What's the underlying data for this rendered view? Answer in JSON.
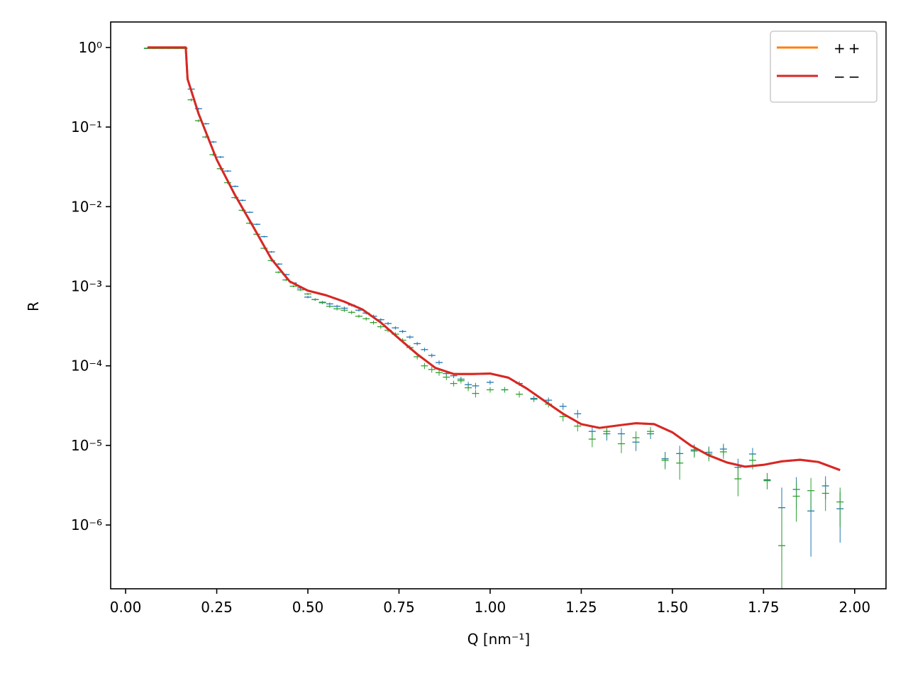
{
  "chart_data": {
    "type": "line",
    "xlabel": "Q [nm⁻¹]",
    "ylabel": "R",
    "xlim": [
      -0.041,
      2.086
    ],
    "ylim": [
      1.58e-07,
      2.09
    ],
    "log_y": true,
    "grid": false,
    "legend": "upper right",
    "xticks": [
      {
        "value": 0,
        "label": "0.00"
      },
      {
        "value": 0.25,
        "label": "0.25"
      },
      {
        "value": 0.5,
        "label": "0.50"
      },
      {
        "value": 0.75,
        "label": "0.75"
      },
      {
        "value": 1,
        "label": "1.00"
      },
      {
        "value": 1.25,
        "label": "1.25"
      },
      {
        "value": 1.5,
        "label": "1.50"
      },
      {
        "value": 1.75,
        "label": "1.75"
      },
      {
        "value": 2,
        "label": "2.00"
      }
    ],
    "yticks": [
      {
        "value": 1,
        "label": "10⁰"
      },
      {
        "value": 0.1,
        "label": "10⁻¹"
      },
      {
        "value": 0.01,
        "label": "10⁻²"
      },
      {
        "value": 0.001,
        "label": "10⁻³"
      },
      {
        "value": 0.0001,
        "label": "10⁻⁴"
      },
      {
        "value": 1e-05,
        "label": "10⁻⁵"
      },
      {
        "value": 1e-06,
        "label": "10⁻⁶"
      }
    ],
    "series": [
      {
        "type": "errorbar",
        "color": "#1f77b4",
        "x": [
          0.06,
          0.08,
          0.1,
          0.12,
          0.14,
          0.16,
          0.18,
          0.2,
          0.22,
          0.24,
          0.26,
          0.28,
          0.3,
          0.32,
          0.34,
          0.36,
          0.38,
          0.4,
          0.42,
          0.44,
          0.46,
          0.48,
          0.5,
          0.52,
          0.54,
          0.56,
          0.58,
          0.6,
          0.62,
          0.64,
          0.66,
          0.68,
          0.7,
          0.72,
          0.74,
          0.76,
          0.78,
          0.8,
          0.82,
          0.84,
          0.86,
          0.88,
          0.9,
          0.92,
          0.94,
          0.96,
          1.0,
          1.04,
          1.08,
          1.12,
          1.16,
          1.2,
          1.24,
          1.28,
          1.32,
          1.36,
          1.4,
          1.44,
          1.48,
          1.52,
          1.56,
          1.6,
          1.64,
          1.68,
          1.72,
          1.76,
          1.8,
          1.84,
          1.88,
          1.92,
          1.96
        ],
        "values": [
          0.98,
          0.98,
          0.98,
          0.98,
          0.98,
          0.98,
          0.3,
          0.17,
          0.11,
          0.065,
          0.042,
          0.028,
          0.018,
          0.012,
          0.0085,
          0.006,
          0.0042,
          0.0027,
          0.0019,
          0.0014,
          0.0011,
          0.00095,
          0.00073,
          0.00068,
          0.00063,
          0.0006,
          0.00056,
          0.00053,
          0.00058,
          0.0005,
          0.00046,
          0.00042,
          0.00038,
          0.00034,
          0.0003,
          0.00027,
          0.00023,
          0.00019,
          0.00016,
          0.000135,
          0.00011,
          8e-05,
          7.5e-05,
          6.8e-05,
          5.8e-05,
          5.6e-05,
          6.2e-05,
          5e-05,
          6e-05,
          3.9e-05,
          3.7e-05,
          3.1e-05,
          2.5e-05,
          1.5e-05,
          1.4e-05,
          1.4e-05,
          1.1e-05,
          1.4e-05,
          6.8e-06,
          7.9e-06,
          8.8e-06,
          8.2e-06,
          9e-06,
          5.3e-06,
          7.8e-06,
          3.7e-06,
          1.65e-06,
          2.8e-06,
          1.5e-06,
          3.1e-06,
          1.6e-06
        ],
        "errors": [
          0.01,
          0.01,
          0.01,
          0.01,
          0.01,
          0.01,
          0.01,
          0.005,
          0.003,
          0.002,
          0.0012,
          0.0008,
          0.0005,
          0.0003,
          0.0002,
          0.00015,
          0.0001,
          7e-05,
          5e-05,
          4e-05,
          3e-05,
          3e-05,
          2.5e-05,
          2.5e-05,
          2.5e-05,
          2.5e-05,
          2.5e-05,
          2.5e-05,
          2.5e-05,
          2e-05,
          2e-05,
          2e-05,
          1.8e-05,
          1.6e-05,
          1.5e-05,
          1.3e-05,
          1.2e-05,
          1e-05,
          9e-06,
          8e-06,
          7e-06,
          6e-06,
          5e-06,
          5e-06,
          5e-06,
          5e-06,
          4e-06,
          4e-06,
          4e-06,
          3e-06,
          3e-06,
          3e-06,
          3e-06,
          2.5e-06,
          2.5e-06,
          2.5e-06,
          2.5e-06,
          2e-06,
          1.5e-06,
          2e-06,
          1.5e-06,
          1.5e-06,
          1.5e-06,
          1.5e-06,
          1.5e-06,
          8e-07,
          1.3e-06,
          1.2e-06,
          1.1e-06,
          1e-06,
          1e-06
        ]
      },
      {
        "type": "errorbar",
        "color": "#2ca02c",
        "x": [
          0.06,
          0.08,
          0.1,
          0.12,
          0.14,
          0.16,
          0.18,
          0.2,
          0.22,
          0.24,
          0.26,
          0.28,
          0.3,
          0.32,
          0.34,
          0.36,
          0.38,
          0.4,
          0.42,
          0.44,
          0.46,
          0.48,
          0.5,
          0.52,
          0.54,
          0.56,
          0.58,
          0.6,
          0.62,
          0.64,
          0.66,
          0.68,
          0.7,
          0.72,
          0.74,
          0.76,
          0.78,
          0.8,
          0.82,
          0.84,
          0.86,
          0.88,
          0.9,
          0.92,
          0.94,
          0.96,
          1.0,
          1.04,
          1.08,
          1.12,
          1.16,
          1.2,
          1.24,
          1.28,
          1.32,
          1.36,
          1.4,
          1.44,
          1.48,
          1.52,
          1.56,
          1.6,
          1.64,
          1.68,
          1.72,
          1.76,
          1.8,
          1.84,
          1.88,
          1.92,
          1.96
        ],
        "values": [
          0.97,
          0.97,
          0.97,
          0.97,
          0.97,
          0.97,
          0.22,
          0.12,
          0.075,
          0.045,
          0.03,
          0.02,
          0.013,
          0.009,
          0.0062,
          0.0045,
          0.003,
          0.0021,
          0.0015,
          0.0012,
          0.001,
          0.0009,
          0.0008,
          0.00068,
          0.00062,
          0.00056,
          0.00052,
          0.0005,
          0.00047,
          0.00042,
          0.00039,
          0.00035,
          0.00031,
          0.00028,
          0.00025,
          0.00021,
          0.00017,
          0.00013,
          0.0001,
          9e-05,
          8.2e-05,
          7.2e-05,
          6e-05,
          6.5e-05,
          5.3e-05,
          4.5e-05,
          5e-05,
          5e-05,
          4.4e-05,
          3.8e-05,
          3.3e-05,
          2.3e-05,
          1.75e-05,
          1.2e-05,
          1.5e-05,
          1.05e-05,
          1.25e-05,
          1.5e-05,
          6.5e-06,
          6e-06,
          8.5e-06,
          7.8e-06,
          8.3e-06,
          3.8e-06,
          6.5e-06,
          3.6e-06,
          5.5e-07,
          2.3e-06,
          2.7e-06,
          2.5e-06,
          1.95e-06
        ],
        "errors": [
          0.01,
          0.01,
          0.01,
          0.01,
          0.01,
          0.01,
          0.01,
          0.005,
          0.003,
          0.002,
          0.0012,
          0.0008,
          0.0005,
          0.0003,
          0.0002,
          0.00015,
          0.0001,
          7e-05,
          5e-05,
          4e-05,
          3e-05,
          3e-05,
          2.5e-05,
          2.5e-05,
          2.5e-05,
          2.5e-05,
          2.5e-05,
          2.5e-05,
          2.5e-05,
          2e-05,
          2e-05,
          2e-05,
          1.8e-05,
          1.6e-05,
          1.5e-05,
          1.3e-05,
          1.2e-05,
          1e-05,
          9e-06,
          8e-06,
          7e-06,
          6e-06,
          5e-06,
          5e-06,
          5e-06,
          5e-06,
          4e-06,
          4e-06,
          4e-06,
          3e-06,
          3e-06,
          3e-06,
          2.5e-06,
          2.5e-06,
          2.5e-06,
          2.5e-06,
          2.5e-06,
          2e-06,
          1.5e-06,
          2.3e-06,
          1.5e-06,
          1.5e-06,
          1.5e-06,
          1.5e-06,
          1.5e-06,
          8e-07,
          1.1e-06,
          1.2e-06,
          1.2e-06,
          1e-06,
          1e-06
        ]
      },
      {
        "type": "line",
        "name": "++",
        "color": "#ff7f0e",
        "x": [
          0.06,
          0.165,
          0.17,
          0.2,
          0.25,
          0.3,
          0.35,
          0.4,
          0.45,
          0.5,
          0.55,
          0.6,
          0.65,
          0.7,
          0.75,
          0.8,
          0.85,
          0.9,
          0.95,
          1.0,
          1.05,
          1.1,
          1.15,
          1.2,
          1.25,
          1.3,
          1.35,
          1.4,
          1.45,
          1.5,
          1.55,
          1.6,
          1.65,
          1.7,
          1.75,
          1.8,
          1.85,
          1.9,
          1.96
        ],
        "values": [
          1,
          1,
          0.4,
          0.148,
          0.039,
          0.014,
          0.0056,
          0.0022,
          0.00115,
          0.00088,
          0.00077,
          0.00064,
          0.00051,
          0.00035,
          0.00022,
          0.00014,
          9.4e-05,
          7.9e-05,
          7.9e-05,
          8e-05,
          7.1e-05,
          5.2e-05,
          3.6e-05,
          2.5e-05,
          1.85e-05,
          1.66e-05,
          1.78e-05,
          1.9e-05,
          1.85e-05,
          1.46e-05,
          1e-05,
          7.5e-06,
          6.1e-06,
          5.4e-06,
          5.7e-06,
          6.3e-06,
          6.6e-06,
          6.2e-06,
          4.9e-06
        ]
      },
      {
        "type": "line",
        "name": "−−",
        "color": "#d62728",
        "x": [
          0.06,
          0.165,
          0.17,
          0.2,
          0.25,
          0.3,
          0.35,
          0.4,
          0.45,
          0.5,
          0.55,
          0.6,
          0.65,
          0.7,
          0.75,
          0.8,
          0.85,
          0.9,
          0.95,
          1.0,
          1.05,
          1.1,
          1.15,
          1.2,
          1.25,
          1.3,
          1.35,
          1.4,
          1.45,
          1.5,
          1.55,
          1.6,
          1.65,
          1.7,
          1.75,
          1.8,
          1.85,
          1.9,
          1.96
        ],
        "values": [
          1,
          1,
          0.4,
          0.148,
          0.039,
          0.014,
          0.0056,
          0.0022,
          0.00115,
          0.00088,
          0.00077,
          0.00064,
          0.00051,
          0.00035,
          0.00022,
          0.00014,
          9.4e-05,
          7.9e-05,
          7.9e-05,
          8e-05,
          7.1e-05,
          5.2e-05,
          3.6e-05,
          2.5e-05,
          1.85e-05,
          1.66e-05,
          1.78e-05,
          1.9e-05,
          1.85e-05,
          1.46e-05,
          1e-05,
          7.5e-06,
          6.1e-06,
          5.4e-06,
          5.7e-06,
          6.3e-06,
          6.6e-06,
          6.2e-06,
          4.9e-06
        ]
      }
    ]
  }
}
